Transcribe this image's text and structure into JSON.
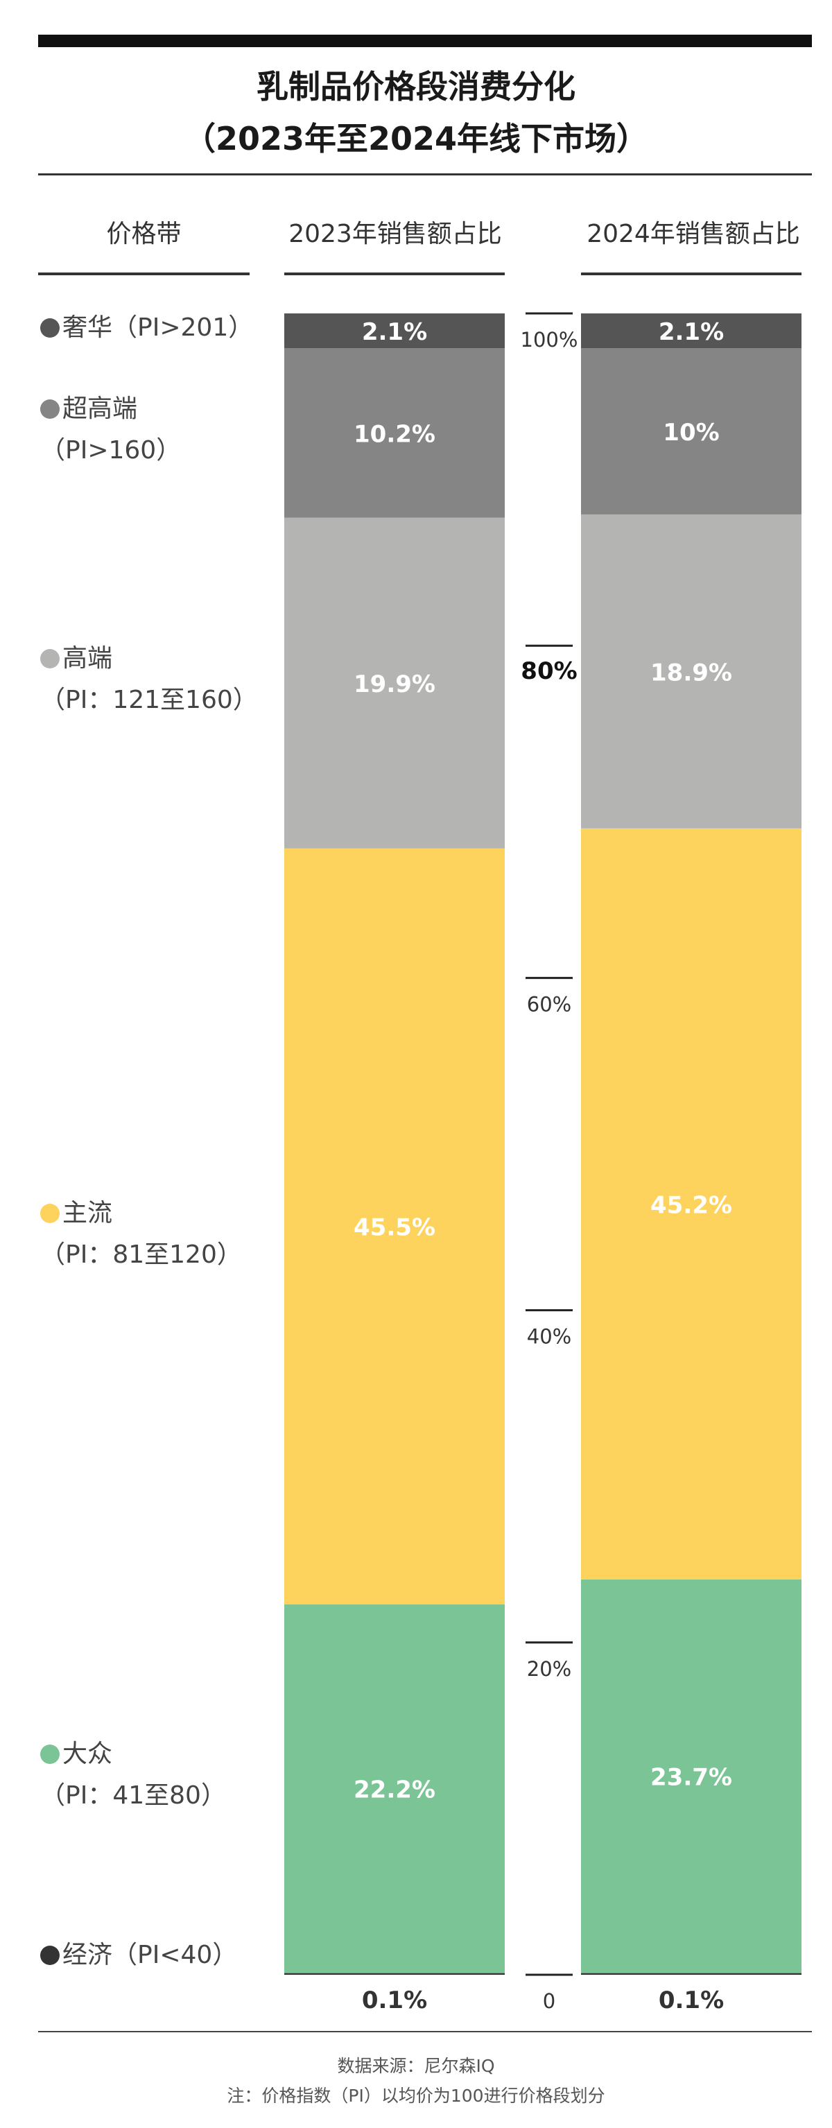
{
  "title": [
    "乳制品价格段消费分化",
    "（2023年至2024年线下市场）"
  ],
  "headers": {
    "category": "价格带",
    "col_2023": "2023年销售额占比",
    "col_2024": "2024年销售额占比"
  },
  "categories": [
    {
      "name": "奢华",
      "range": "（PI>201）",
      "color": "#555555"
    },
    {
      "name": "超高端",
      "range": "（PI>160）",
      "color": "#858585"
    },
    {
      "name": "高端",
      "range": "（PI：121至160）",
      "color": "#b4b5b3"
    },
    {
      "name": "主流",
      "range": "（PI：81至120）",
      "color": "#fdd35e"
    },
    {
      "name": "大众",
      "range": "（PI：41至80）",
      "color": "#7ac495"
    },
    {
      "name": "经济",
      "range": "（PI<40）",
      "color": "#333333"
    }
  ],
  "footnotes": {
    "source": "数据来源：尼尔森IQ",
    "note": "注：价格指数（PI）以均价为100进行价格段划分"
  },
  "chart_data": {
    "type": "bar",
    "stacked": true,
    "categories": [
      "2023年销售额占比",
      "2024年销售额占比"
    ],
    "series": [
      {
        "name": "经济",
        "values": [
          0.1,
          0.1
        ],
        "labels": [
          "0.1%",
          "0.1%"
        ],
        "color": "#333333"
      },
      {
        "name": "大众",
        "values": [
          22.2,
          23.7
        ],
        "labels": [
          "22.2%",
          "23.7%"
        ],
        "color": "#7ac495"
      },
      {
        "name": "主流",
        "values": [
          45.5,
          45.2
        ],
        "labels": [
          "45.5%",
          "45.2%"
        ],
        "color": "#fdd35e"
      },
      {
        "name": "高端",
        "values": [
          19.9,
          18.9
        ],
        "labels": [
          "19.9%",
          "18.9%"
        ],
        "color": "#b4b5b3"
      },
      {
        "name": "超高端",
        "values": [
          10.2,
          10
        ],
        "labels": [
          "10.2%",
          "10%"
        ],
        "color": "#858585"
      },
      {
        "name": "奢华",
        "values": [
          2.1,
          2.1
        ],
        "labels": [
          "2.1%",
          "2.1%"
        ],
        "color": "#555555"
      }
    ],
    "ylim": [
      0,
      100
    ],
    "yticks": [
      0,
      20,
      40,
      60,
      80,
      100
    ],
    "ytick_labels": [
      "0",
      "20%",
      "40%",
      "60%",
      "80%",
      "100%"
    ],
    "highlight_tick": 80
  }
}
